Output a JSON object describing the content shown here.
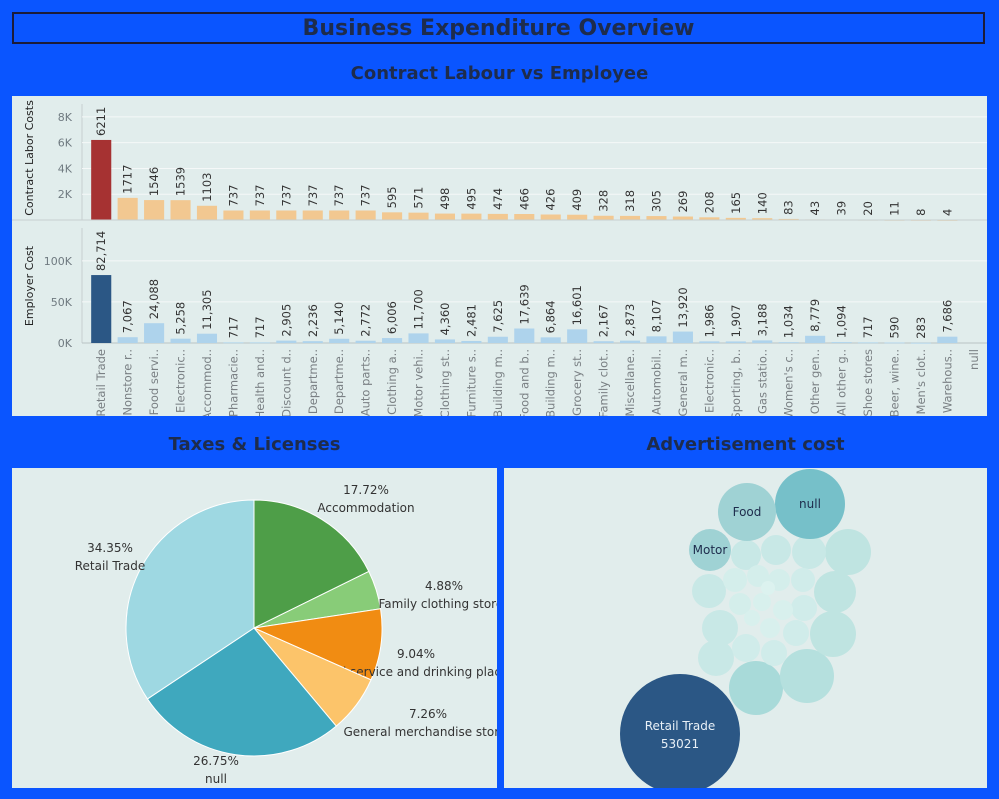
{
  "dashboard_title": "Business Expenditure Overview",
  "colors": {
    "background": "#0a55ff",
    "panel": "#e1edec",
    "title_text": "#1e2c4c"
  },
  "chart_data": [
    {
      "type": "bar",
      "title": "Contract Labour vs Employee",
      "categories_display": [
        "Retail Trade",
        "Nonstore r..",
        "Food servi..",
        "Electronic..",
        "Accommod..",
        "Pharmacie..",
        "Health and..",
        "Discount d..",
        "Departme..",
        "Departme..",
        "Auto parts..",
        "Clothing a..",
        "Motor vehi..",
        "Clothing st..",
        "Furniture s..",
        "Building m..",
        "Food and b..",
        "Building m..",
        "Grocery st..",
        "Family clot..",
        "Miscellane..",
        "Automobil..",
        "General m..",
        "Electronic..",
        "Sporting, b..",
        "Gas statio..",
        "Women's c..",
        "Other gen..",
        "All other g..",
        "Shoe stores",
        "Beer, wine..",
        "Men's clot..",
        "Warehous..",
        "null"
      ],
      "panels": [
        {
          "ylabel": "Contract Labor Costs",
          "ylim": [
            0,
            9000
          ],
          "ticks": [
            2000,
            4000,
            6000,
            8000
          ],
          "tick_labels": [
            "2K",
            "4K",
            "6K",
            "8K"
          ],
          "values": [
            6211,
            1717,
            1546,
            1539,
            1103,
            737,
            737,
            737,
            737,
            737,
            737,
            595,
            571,
            498,
            495,
            474,
            466,
            426,
            409,
            328,
            318,
            305,
            269,
            208,
            165,
            140,
            83,
            43,
            39,
            20,
            11,
            8,
            4,
            null
          ],
          "value_labels": [
            "6211",
            "1717",
            "1546",
            "1539",
            "1103",
            "737",
            "737",
            "737",
            "737",
            "737",
            "737",
            "595",
            "571",
            "498",
            "495",
            "474",
            "466",
            "426",
            "409",
            "328",
            "318",
            "305",
            "269",
            "208",
            "165",
            "140",
            "83",
            "43",
            "39",
            "20",
            "11",
            "8",
            "4",
            ""
          ]
        },
        {
          "ylabel": "Employer Cost",
          "ylim": [
            0,
            140000
          ],
          "ticks": [
            0,
            50000,
            100000
          ],
          "tick_labels": [
            "0K",
            "50K",
            "100K"
          ],
          "values": [
            82714,
            7067,
            24088,
            5258,
            11305,
            717,
            717,
            2905,
            2236,
            5140,
            2772,
            6006,
            11700,
            4360,
            2481,
            7625,
            17639,
            6864,
            16601,
            2167,
            2873,
            8107,
            13920,
            1986,
            1907,
            3188,
            1034,
            8779,
            1094,
            717,
            590,
            283,
            7686,
            null
          ],
          "value_labels": [
            "82,714",
            "7,067",
            "24,088",
            "5,258",
            "11,305",
            "717",
            "717",
            "2,905",
            "2,236",
            "5,140",
            "2,772",
            "6,006",
            "11,700",
            "4,360",
            "2,481",
            "7,625",
            "17,639",
            "6,864",
            "16,601",
            "2,167",
            "2,873",
            "8,107",
            "13,920",
            "1,986",
            "1,907",
            "3,188",
            "1,034",
            "8,779",
            "1,094",
            "717",
            "590",
            "283",
            "7,686",
            ""
          ]
        }
      ]
    },
    {
      "type": "pie",
      "title": "Taxes & Licenses",
      "slices": [
        {
          "name": "Accommodation",
          "value": 17.72,
          "label": "17.72%",
          "color": "#4e9e48"
        },
        {
          "name": "Family clothing stores",
          "value": 4.88,
          "label": "4.88%",
          "color": "#88cc78"
        },
        {
          "name": "Food service and drinking places",
          "value": 9.04,
          "label": "9.04%",
          "color": "#f18c12"
        },
        {
          "name": "General merchandise stores",
          "value": 7.26,
          "label": "7.26%",
          "color": "#fcc46a"
        },
        {
          "name": "null",
          "value": 26.75,
          "label": "26.75%",
          "color": "#3fa8be"
        },
        {
          "name": "Retail Trade",
          "value": 34.35,
          "label": "34.35%",
          "color": "#9ed8e2"
        }
      ]
    },
    {
      "type": "bubble",
      "title": "Advertisement cost",
      "labeled_bubbles": [
        {
          "name": "Retail Trade",
          "value": "53021",
          "color": "#2b5785"
        },
        {
          "name": "null",
          "value": "",
          "color": "#76c0c9"
        },
        {
          "name": "Food",
          "value": "",
          "color": "#9fd2d4"
        },
        {
          "name": "Motor",
          "value": "",
          "color": "#9fd2d4"
        }
      ]
    }
  ]
}
